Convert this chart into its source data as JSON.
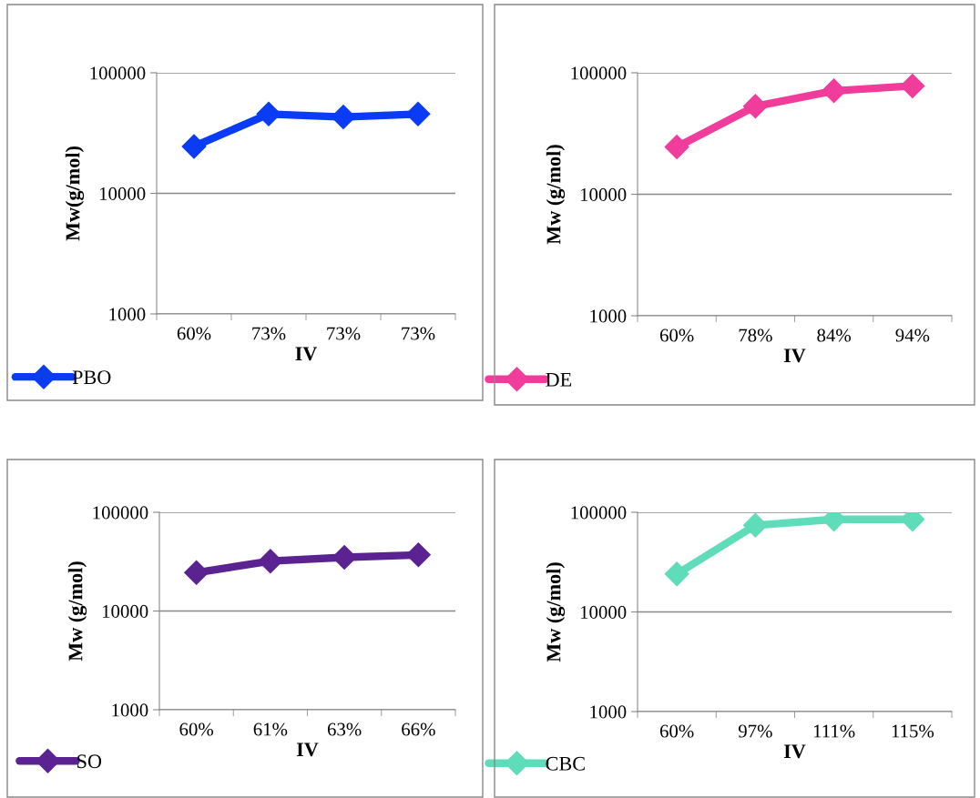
{
  "chart_data": [
    {
      "type": "line",
      "ylabel": "Mw(g/mol)",
      "xlabel": "IV",
      "categories": [
        "60%",
        "73%",
        "73%",
        "73%"
      ],
      "log": true,
      "ylim": [
        1000,
        100000
      ],
      "yticks": [
        1000,
        10000,
        100000
      ],
      "grid": "y",
      "marker": "diamond",
      "legend": "bottom left",
      "series": [
        {
          "name": "PBO",
          "color": "#0a3cf5",
          "values": [
            24500,
            45500,
            43000,
            45500
          ]
        }
      ]
    },
    {
      "type": "line",
      "ylabel": "Mw (g/mol)",
      "xlabel": "IV",
      "categories": [
        "60%",
        "78%",
        "84%",
        "94%"
      ],
      "log": true,
      "ylim": [
        1000,
        100000
      ],
      "yticks": [
        1000,
        10000,
        100000
      ],
      "grid": "y",
      "marker": "diamond",
      "legend": "bottom left",
      "series": [
        {
          "name": "DE",
          "color": "#f03c9a",
          "values": [
            24500,
            53000,
            71000,
            78000
          ]
        }
      ]
    },
    {
      "type": "line",
      "ylabel": "Mw (g/mol)",
      "xlabel": "IV",
      "categories": [
        "60%",
        "61%",
        "63%",
        "66%"
      ],
      "log": true,
      "ylim": [
        1000,
        100000
      ],
      "yticks": [
        1000,
        10000,
        100000
      ],
      "grid": "y",
      "marker": "diamond",
      "legend": "bottom left",
      "series": [
        {
          "name": "SO",
          "color": "#5a2391",
          "values": [
            24500,
            32000,
            35000,
            37000
          ]
        }
      ]
    },
    {
      "type": "line",
      "ylabel": "Mw (g/mol)",
      "xlabel": "IV",
      "categories": [
        "60%",
        "97%",
        "111%",
        "115%"
      ],
      "log": true,
      "ylim": [
        1000,
        100000
      ],
      "yticks": [
        1000,
        10000,
        100000
      ],
      "grid": "y",
      "marker": "diamond",
      "legend": "bottom left",
      "series": [
        {
          "name": "CBC",
          "color": "#5fdcb9",
          "values": [
            24000,
            74000,
            85000,
            85000
          ]
        }
      ]
    }
  ]
}
